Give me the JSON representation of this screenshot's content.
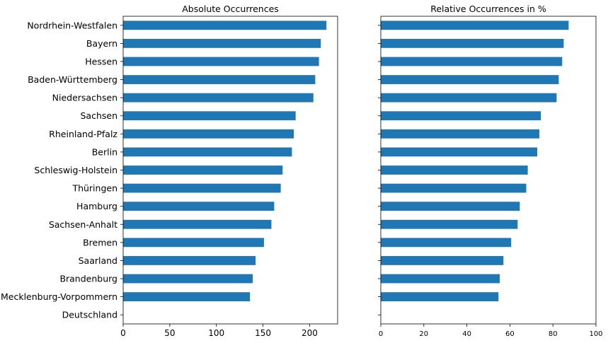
{
  "chart_data": [
    {
      "type": "bar",
      "orientation": "horizontal",
      "title": "Absolute Occurrences",
      "xlabel": "",
      "ylabel": "",
      "xlim": [
        0,
        230
      ],
      "xticks": [
        0,
        50,
        100,
        150,
        200
      ],
      "categories": [
        "Nordrhein-Westfalen",
        "Bayern",
        "Hessen",
        "Baden-Württemberg",
        "Niedersachsen",
        "Sachsen",
        "Rheinland-Pfalz",
        "Berlin",
        "Schleswig-Holstein",
        "Thüringen",
        "Hamburg",
        "Sachsen-Anhalt",
        "Bremen",
        "Saarland",
        "Brandenburg",
        "Mecklenburg-Vorpommern",
        "Deutschland"
      ],
      "values": [
        218,
        212,
        210,
        206,
        204,
        185,
        183,
        181,
        171,
        169,
        162,
        159,
        151,
        142,
        139,
        136,
        0
      ],
      "color": "#1f77b4",
      "grid": false
    },
    {
      "type": "bar",
      "orientation": "horizontal",
      "title": "Relative Occurrences in %",
      "xlabel": "",
      "ylabel": "",
      "xlim": [
        0,
        100
      ],
      "xticks": [
        0,
        20,
        40,
        60,
        80,
        100
      ],
      "categories": [
        "Nordrhein-Westfalen",
        "Bayern",
        "Hessen",
        "Baden-Württemberg",
        "Niedersachsen",
        "Sachsen",
        "Rheinland-Pfalz",
        "Berlin",
        "Schleswig-Holstein",
        "Thüringen",
        "Hamburg",
        "Sachsen-Anhalt",
        "Bremen",
        "Saarland",
        "Brandenburg",
        "Mecklenburg-Vorpommern",
        "Deutschland"
      ],
      "values": [
        87.3,
        85.0,
        84.3,
        82.7,
        81.7,
        74.4,
        73.7,
        72.7,
        68.3,
        67.6,
        64.6,
        63.6,
        60.6,
        57.0,
        55.3,
        54.7,
        0
      ],
      "color": "#1f77b4",
      "grid": false
    }
  ]
}
